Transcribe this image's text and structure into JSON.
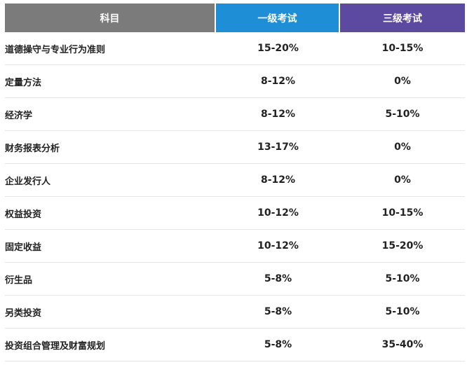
{
  "table": {
    "headers": {
      "subject": "科目",
      "level1": "一级考试",
      "level3": "三级考试"
    },
    "rows": [
      {
        "subject": "道德操守与专业行为准则",
        "level1": "15-20%",
        "level3": "10-15%"
      },
      {
        "subject": "定量方法",
        "level1": "8-12%",
        "level3": "0%"
      },
      {
        "subject": "经济学",
        "level1": "8-12%",
        "level3": "5-10%"
      },
      {
        "subject": "财务报表分析",
        "level1": "13-17%",
        "level3": "0%"
      },
      {
        "subject": "企业发行人",
        "level1": "8-12%",
        "level3": "0%"
      },
      {
        "subject": "权益投资",
        "level1": "10-12%",
        "level3": "10-15%"
      },
      {
        "subject": "固定收益",
        "level1": "10-12%",
        "level3": "15-20%"
      },
      {
        "subject": "衍生品",
        "level1": "5-8%",
        "level3": "5-10%"
      },
      {
        "subject": "另类投资",
        "level1": "5-8%",
        "level3": "5-10%"
      },
      {
        "subject": "投资组合管理及财富规划",
        "level1": "5-8%",
        "level3": "35-40%"
      }
    ],
    "colors": {
      "subject_header": "#7b7b7b",
      "level1_header": "#1e8fd6",
      "level3_header": "#5b4aa0"
    }
  }
}
